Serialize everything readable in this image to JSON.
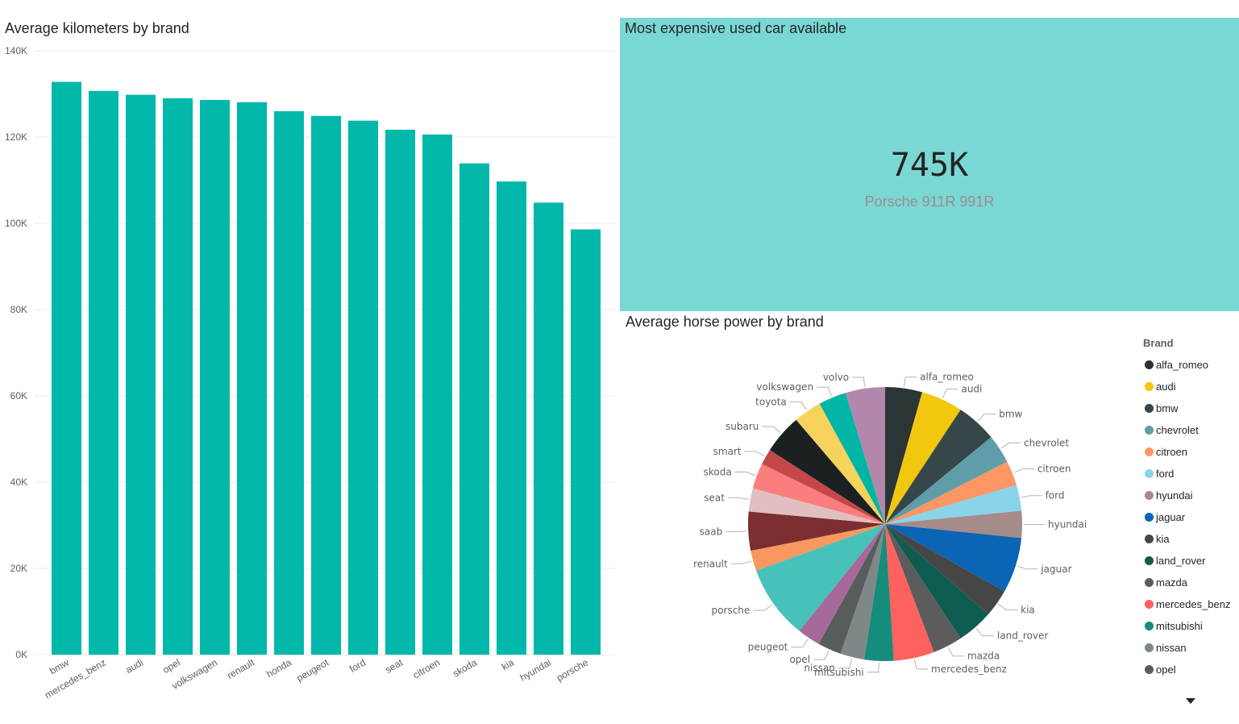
{
  "bar_chart": {
    "title": "Average kilometers by brand"
  },
  "card": {
    "title": "Most expensive used car available",
    "value": "745K",
    "label": "Porsche 911R 991R",
    "background_color": "#79d8d4"
  },
  "pie_chart": {
    "title": "Average horse power by brand"
  },
  "legend": {
    "title": "Brand",
    "items": [
      {
        "label": "alfa_romeo",
        "color": "#2b3536"
      },
      {
        "label": "audi",
        "color": "#f2c80f"
      },
      {
        "label": "bmw",
        "color": "#374649"
      },
      {
        "label": "chevrolet",
        "color": "#5f9ea8"
      },
      {
        "label": "citroen",
        "color": "#fe9666"
      },
      {
        "label": "ford",
        "color": "#8ad4eb"
      },
      {
        "label": "hyundai",
        "color": "#a68b8b"
      },
      {
        "label": "jaguar",
        "color": "#0b64b4"
      },
      {
        "label": "kia",
        "color": "#464646"
      },
      {
        "label": "land_rover",
        "color": "#0f5c50"
      },
      {
        "label": "mazda",
        "color": "#5c5c5c"
      },
      {
        "label": "mercedes_benz",
        "color": "#fd625e"
      },
      {
        "label": "mitsubishi",
        "color": "#168c7c"
      },
      {
        "label": "nissan",
        "color": "#7f8887"
      },
      {
        "label": "opel",
        "color": "#565d5c"
      }
    ]
  },
  "chart_data": [
    {
      "type": "bar",
      "title": "Average kilometers by brand",
      "categories": [
        "bmw",
        "mercedes_benz",
        "audi",
        "opel",
        "volkswagen",
        "renault",
        "honda",
        "peugeot",
        "ford",
        "seat",
        "citroen",
        "skoda",
        "kia",
        "hyundai",
        "porsche"
      ],
      "values": [
        132800,
        130700,
        129800,
        129000,
        128600,
        128100,
        126000,
        124900,
        123800,
        121700,
        120600,
        113900,
        109700,
        104800,
        98600
      ],
      "yticks": [
        "0K",
        "20K",
        "40K",
        "60K",
        "80K",
        "100K",
        "120K",
        "140K"
      ],
      "ylim": [
        0,
        140000
      ],
      "bar_color": "#01b8aa",
      "grid": true
    },
    {
      "type": "pie",
      "title": "Average horse power by brand",
      "slices": [
        {
          "label": "alfa_romeo",
          "value": 100,
          "color": "#2b3536"
        },
        {
          "label": "audi",
          "value": 113,
          "color": "#f2c80f"
        },
        {
          "label": "bmw",
          "value": 110,
          "color": "#374649"
        },
        {
          "label": "chevrolet",
          "value": 78,
          "color": "#5f9ea8"
        },
        {
          "label": "citroen",
          "value": 67,
          "color": "#fe9666"
        },
        {
          "label": "ford",
          "value": 70,
          "color": "#8ad4eb"
        },
        {
          "label": "hyundai",
          "value": 73,
          "color": "#a68b8b"
        },
        {
          "label": "jaguar",
          "value": 150,
          "color": "#0b64b4"
        },
        {
          "label": "kia",
          "value": 75,
          "color": "#464646"
        },
        {
          "label": "land_rover",
          "value": 98,
          "color": "#0f5c50"
        },
        {
          "label": "mazda",
          "value": 80,
          "color": "#5c5c5c"
        },
        {
          "label": "mercedes_benz",
          "value": 110,
          "color": "#fd625e"
        },
        {
          "label": "mitsubishi",
          "value": 79,
          "color": "#168c7c"
        },
        {
          "label": "nissan",
          "value": 65,
          "color": "#7f8887"
        },
        {
          "label": "opel",
          "value": 64,
          "color": "#565d5c"
        },
        {
          "label": "peugeot",
          "value": 62,
          "color": "#a66999"
        },
        {
          "label": "porsche",
          "value": 200,
          "color": "#47c2b8"
        },
        {
          "label": "renault",
          "value": 55,
          "color": "#f99760"
        },
        {
          "label": "saab",
          "value": 105,
          "color": "#7d2e2e"
        },
        {
          "label": "seat",
          "value": 63,
          "color": "#e0bfbf"
        },
        {
          "label": "skoda",
          "value": 69,
          "color": "#fb7d7d"
        },
        {
          "label": "smart",
          "value": 43,
          "color": "#c44848"
        },
        {
          "label": "subaru",
          "value": 107,
          "color": "#1b2022"
        },
        {
          "label": "toyota",
          "value": 76,
          "color": "#f5d35c"
        },
        {
          "label": "volkswagen",
          "value": 75,
          "color": "#00b5a5"
        },
        {
          "label": "volvo",
          "value": 107,
          "color": "#b387ac"
        }
      ]
    }
  ]
}
